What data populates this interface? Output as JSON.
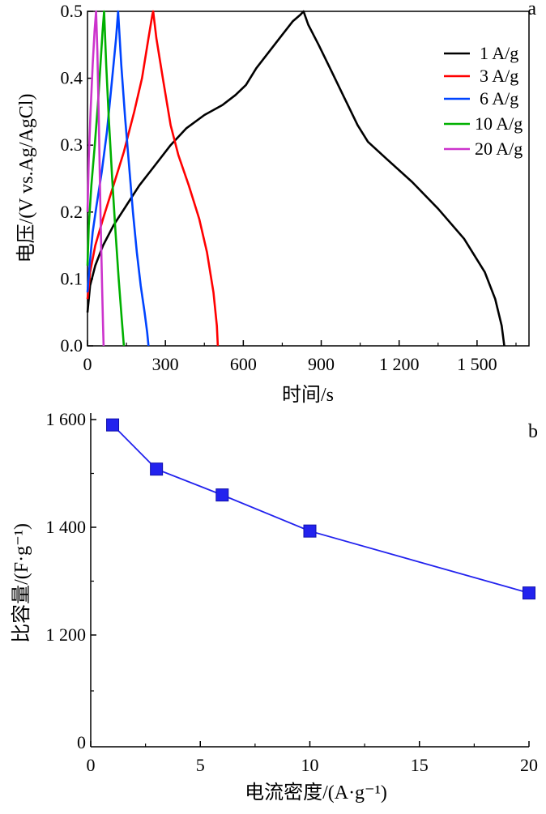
{
  "chart_data": [
    {
      "type": "line",
      "panel_label": "a",
      "xlabel": "时间/s",
      "ylabel": "电压/(V vs.Ag/AgCl)",
      "xlim": [
        0,
        1700
      ],
      "ylim": [
        0,
        0.5
      ],
      "x_ticks": [
        0,
        300,
        600,
        900,
        1200,
        1500
      ],
      "x_tick_labels": [
        "0",
        "300",
        "600",
        "900",
        "1 200",
        "1 500"
      ],
      "y_ticks": [
        0,
        0.1,
        0.2,
        0.3,
        0.4,
        0.5
      ],
      "y_tick_labels": [
        "0.0",
        "0.1",
        "0.2",
        "0.3",
        "0.4",
        "0.5"
      ],
      "grid": false,
      "legend_position": "top-right",
      "series": [
        {
          "name": "1 A/g",
          "color": "#000000",
          "points": [
            [
              0,
              0.05
            ],
            [
              10,
              0.09
            ],
            [
              30,
              0.12
            ],
            [
              60,
              0.15
            ],
            [
              100,
              0.18
            ],
            [
              150,
              0.21
            ],
            [
              200,
              0.24
            ],
            [
              260,
              0.27
            ],
            [
              320,
              0.3
            ],
            [
              380,
              0.325
            ],
            [
              450,
              0.345
            ],
            [
              520,
              0.36
            ],
            [
              570,
              0.375
            ],
            [
              610,
              0.39
            ],
            [
              650,
              0.415
            ],
            [
              700,
              0.44
            ],
            [
              750,
              0.465
            ],
            [
              790,
              0.485
            ],
            [
              820,
              0.495
            ],
            [
              832,
              0.5
            ],
            [
              850,
              0.48
            ],
            [
              890,
              0.45
            ],
            [
              940,
              0.41
            ],
            [
              990,
              0.37
            ],
            [
              1040,
              0.33
            ],
            [
              1080,
              0.305
            ],
            [
              1150,
              0.28
            ],
            [
              1250,
              0.245
            ],
            [
              1350,
              0.205
            ],
            [
              1450,
              0.16
            ],
            [
              1530,
              0.11
            ],
            [
              1570,
              0.07
            ],
            [
              1595,
              0.03
            ],
            [
              1605,
              0.0
            ]
          ]
        },
        {
          "name": "3 A/g",
          "color": "#ff0000",
          "points": [
            [
              0,
              0.07
            ],
            [
              10,
              0.11
            ],
            [
              30,
              0.15
            ],
            [
              60,
              0.19
            ],
            [
              100,
              0.24
            ],
            [
              140,
              0.29
            ],
            [
              180,
              0.35
            ],
            [
              210,
              0.4
            ],
            [
              235,
              0.46
            ],
            [
              250,
              0.495
            ],
            [
              253,
              0.5
            ],
            [
              265,
              0.46
            ],
            [
              290,
              0.4
            ],
            [
              320,
              0.33
            ],
            [
              350,
              0.285
            ],
            [
              390,
              0.24
            ],
            [
              430,
              0.19
            ],
            [
              460,
              0.14
            ],
            [
              485,
              0.08
            ],
            [
              498,
              0.03
            ],
            [
              502,
              0.0
            ]
          ]
        },
        {
          "name": "6 A/g",
          "color": "#0044ff",
          "points": [
            [
              0,
              0.08
            ],
            [
              8,
              0.12
            ],
            [
              20,
              0.17
            ],
            [
              35,
              0.21
            ],
            [
              55,
              0.26
            ],
            [
              75,
              0.32
            ],
            [
              95,
              0.4
            ],
            [
              110,
              0.46
            ],
            [
              118,
              0.5
            ],
            [
              130,
              0.42
            ],
            [
              145,
              0.34
            ],
            [
              160,
              0.27
            ],
            [
              175,
              0.2
            ],
            [
              190,
              0.14
            ],
            [
              205,
              0.09
            ],
            [
              220,
              0.05
            ],
            [
              230,
              0.02
            ],
            [
              235,
              0.0
            ]
          ]
        },
        {
          "name": "10 A/g",
          "color": "#00b000",
          "points": [
            [
              0,
              0.12
            ],
            [
              5,
              0.18
            ],
            [
              15,
              0.24
            ],
            [
              28,
              0.3
            ],
            [
              40,
              0.36
            ],
            [
              50,
              0.42
            ],
            [
              58,
              0.47
            ],
            [
              64,
              0.5
            ],
            [
              72,
              0.42
            ],
            [
              82,
              0.34
            ],
            [
              95,
              0.25
            ],
            [
              108,
              0.17
            ],
            [
              120,
              0.1
            ],
            [
              132,
              0.04
            ],
            [
              140,
              0.0
            ]
          ]
        },
        {
          "name": "20 A/g",
          "color": "#cc33cc",
          "points": [
            [
              0,
              0.2
            ],
            [
              5,
              0.28
            ],
            [
              12,
              0.35
            ],
            [
              20,
              0.42
            ],
            [
              27,
              0.47
            ],
            [
              33,
              0.5
            ],
            [
              38,
              0.44
            ],
            [
              44,
              0.33
            ],
            [
              50,
              0.2
            ],
            [
              56,
              0.09
            ],
            [
              60,
              0.03
            ],
            [
              62,
              0.0
            ]
          ]
        }
      ]
    },
    {
      "type": "line",
      "panel_label": "b",
      "xlabel": "电流密度/(A·g⁻¹)",
      "ylabel": "比容量/(F·g⁻¹)",
      "xlim": [
        0,
        20
      ],
      "x_ticks": [
        0,
        5,
        10,
        15,
        20
      ],
      "x_tick_labels": [
        "0",
        "5",
        "10",
        "15",
        "20"
      ],
      "y_ticks": [
        1200,
        1400,
        1600
      ],
      "y_tick_labels": [
        "1 200",
        "1 400",
        "1 600"
      ],
      "y_axis_break_label": "0",
      "grid": false,
      "marker": "square",
      "series": [
        {
          "color": "#2222ee",
          "x": [
            1,
            3,
            6,
            10,
            20
          ],
          "y": [
            1590,
            1508,
            1460,
            1393,
            1278
          ]
        }
      ]
    }
  ]
}
